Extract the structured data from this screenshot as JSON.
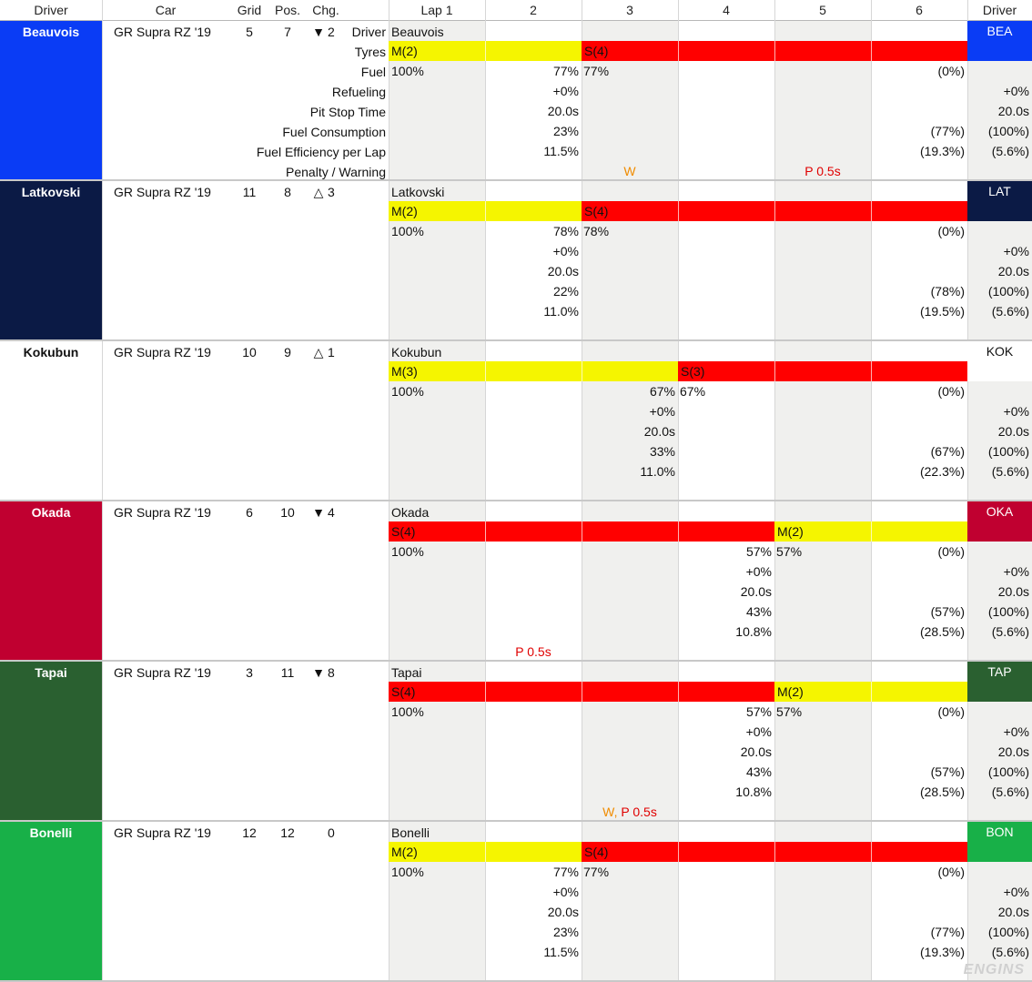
{
  "header": {
    "driver": "Driver",
    "car": "Car",
    "grid": "Grid",
    "pos": "Pos.",
    "chg": "Chg.",
    "laps": [
      "Lap 1",
      "2",
      "3",
      "4",
      "5",
      "6"
    ],
    "driver_right": "Driver"
  },
  "row_labels": [
    "Driver",
    "Tyres",
    "Fuel",
    "Refueling",
    "Pit Stop Time",
    "Fuel Consumption",
    "Fuel Efficiency per Lap",
    "Penalty / Warning"
  ],
  "colors": {
    "tyre_medium": "#f5f500",
    "tyre_soft": "#ff0000",
    "penalty": "#e00000",
    "warning": "#f08c00"
  },
  "drivers": [
    {
      "name": "Beauvois",
      "abbr": "BEA",
      "car": "GR Supra RZ '19",
      "grid": "5",
      "pos": "7",
      "chg_symbol": "▼",
      "chg": "2",
      "color": "#0a3cf5",
      "text_color": "#ffffff",
      "abbr_bg": "#0a3cf5",
      "abbr_color": "#ffffff",
      "tyres": [
        {
          "label": "M(2)",
          "laps": 2,
          "compound": "M"
        },
        {
          "label": "S(4)",
          "laps": 4,
          "compound": "S"
        }
      ],
      "stint1_end": "77%",
      "stint2_start": "77%",
      "fuel_start": "100%",
      "fuel_end": "(0%)",
      "refuel": "+0%",
      "pit_time": "20.0s",
      "consumption": "23%",
      "efficiency": "11.5%",
      "end_consumption": "(77%)",
      "end_efficiency": "(19.3%)",
      "tot_refuel": "+0%",
      "tot_pit": "20.0s",
      "tot_cons": "(100%)",
      "tot_eff": "(5.6%)",
      "penalties": [
        {
          "lap": 3,
          "parts": [
            {
              "text": "W",
              "kind": "warn"
            }
          ]
        },
        {
          "lap": 5,
          "parts": [
            {
              "text": "P 0.5s",
              "kind": "pen"
            }
          ]
        }
      ]
    },
    {
      "name": "Latkovski",
      "abbr": "LAT",
      "car": "GR Supra RZ '19",
      "grid": "11",
      "pos": "8",
      "chg_symbol": "△",
      "chg": "3",
      "color": "#0b1a45",
      "text_color": "#ffffff",
      "abbr_bg": "#0b1a45",
      "abbr_color": "#ffffff",
      "tyres": [
        {
          "label": "M(2)",
          "laps": 2,
          "compound": "M"
        },
        {
          "label": "S(4)",
          "laps": 4,
          "compound": "S"
        }
      ],
      "stint1_end": "78%",
      "stint2_start": "78%",
      "fuel_start": "100%",
      "fuel_end": "(0%)",
      "refuel": "+0%",
      "pit_time": "20.0s",
      "consumption": "22%",
      "efficiency": "11.0%",
      "end_consumption": "(78%)",
      "end_efficiency": "(19.5%)",
      "tot_refuel": "+0%",
      "tot_pit": "20.0s",
      "tot_cons": "(100%)",
      "tot_eff": "(5.6%)",
      "penalties": []
    },
    {
      "name": "Kokubun",
      "abbr": "KOK",
      "car": "GR Supra RZ '19",
      "grid": "10",
      "pos": "9",
      "chg_symbol": "△",
      "chg": "1",
      "color": "#ffffff",
      "text_color": "#111111",
      "abbr_bg": "#ffffff",
      "abbr_color": "#111111",
      "tyres": [
        {
          "label": "M(3)",
          "laps": 3,
          "compound": "M"
        },
        {
          "label": "S(3)",
          "laps": 3,
          "compound": "S"
        }
      ],
      "stint1_end": "67%",
      "stint2_start": "67%",
      "fuel_start": "100%",
      "fuel_end": "(0%)",
      "refuel": "+0%",
      "pit_time": "20.0s",
      "consumption": "33%",
      "efficiency": "11.0%",
      "end_consumption": "(67%)",
      "end_efficiency": "(22.3%)",
      "tot_refuel": "+0%",
      "tot_pit": "20.0s",
      "tot_cons": "(100%)",
      "tot_eff": "(5.6%)",
      "penalties": []
    },
    {
      "name": "Okada",
      "abbr": "OKA",
      "car": "GR Supra RZ '19",
      "grid": "6",
      "pos": "10",
      "chg_symbol": "▼",
      "chg": "4",
      "color": "#c00030",
      "text_color": "#ffffff",
      "abbr_bg": "#c00030",
      "abbr_color": "#ffffff",
      "tyres": [
        {
          "label": "S(4)",
          "laps": 4,
          "compound": "S"
        },
        {
          "label": "M(2)",
          "laps": 2,
          "compound": "M"
        }
      ],
      "stint1_end": "57%",
      "stint2_start": "57%",
      "fuel_start": "100%",
      "fuel_end": "(0%)",
      "refuel": "+0%",
      "pit_time": "20.0s",
      "consumption": "43%",
      "efficiency": "10.8%",
      "end_consumption": "(57%)",
      "end_efficiency": "(28.5%)",
      "tot_refuel": "+0%",
      "tot_pit": "20.0s",
      "tot_cons": "(100%)",
      "tot_eff": "(5.6%)",
      "penalties": [
        {
          "lap": 2,
          "parts": [
            {
              "text": "P 0.5s",
              "kind": "pen"
            }
          ]
        }
      ]
    },
    {
      "name": "Tapai",
      "abbr": "TAP",
      "car": "GR Supra RZ '19",
      "grid": "3",
      "pos": "11",
      "chg_symbol": "▼",
      "chg": "8",
      "color": "#2a6030",
      "text_color": "#ffffff",
      "abbr_bg": "#2a6030",
      "abbr_color": "#ffffff",
      "tyres": [
        {
          "label": "S(4)",
          "laps": 4,
          "compound": "S"
        },
        {
          "label": "M(2)",
          "laps": 2,
          "compound": "M"
        }
      ],
      "stint1_end": "57%",
      "stint2_start": "57%",
      "fuel_start": "100%",
      "fuel_end": "(0%)",
      "refuel": "+0%",
      "pit_time": "20.0s",
      "consumption": "43%",
      "efficiency": "10.8%",
      "end_consumption": "(57%)",
      "end_efficiency": "(28.5%)",
      "tot_refuel": "+0%",
      "tot_pit": "20.0s",
      "tot_cons": "(100%)",
      "tot_eff": "(5.6%)",
      "penalties": [
        {
          "lap": 3,
          "parts": [
            {
              "text": "W, ",
              "kind": "warn"
            },
            {
              "text": "P 0.5s",
              "kind": "pen"
            }
          ]
        }
      ]
    },
    {
      "name": "Bonelli",
      "abbr": "BON",
      "car": "GR Supra RZ '19",
      "grid": "12",
      "pos": "12",
      "chg_symbol": "",
      "chg": "0",
      "color": "#18b048",
      "text_color": "#ffffff",
      "abbr_bg": "#18b048",
      "abbr_color": "#ffffff",
      "tyres": [
        {
          "label": "M(2)",
          "laps": 2,
          "compound": "M"
        },
        {
          "label": "S(4)",
          "laps": 4,
          "compound": "S"
        }
      ],
      "stint1_end": "77%",
      "stint2_start": "77%",
      "fuel_start": "100%",
      "fuel_end": "(0%)",
      "refuel": "+0%",
      "pit_time": "20.0s",
      "consumption": "23%",
      "efficiency": "11.5%",
      "end_consumption": "(77%)",
      "end_efficiency": "(19.3%)",
      "tot_refuel": "+0%",
      "tot_pit": "20.0s",
      "tot_cons": "(100%)",
      "tot_eff": "(5.6%)",
      "penalties": []
    }
  ],
  "watermark": "ENGINS"
}
